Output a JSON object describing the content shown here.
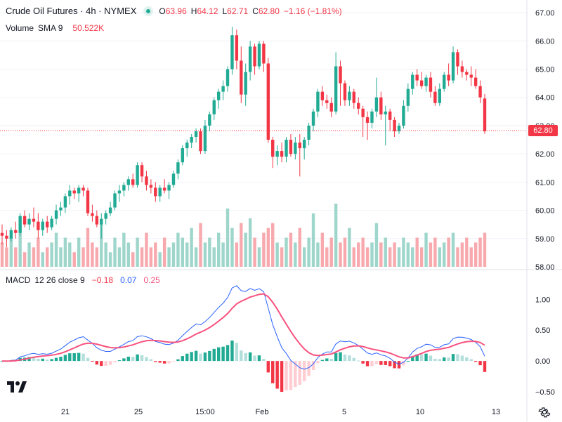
{
  "header": {
    "title": "Crude Oil Futures · 4h · NYMEX",
    "open_label": "O",
    "open": "63.96",
    "high_label": "H",
    "high": "64.12",
    "low_label": "L",
    "low": "62.71",
    "close_label": "C",
    "close": "62.80",
    "change": "−1.16 (−1.81%)"
  },
  "volume_legend": {
    "name": "Volume",
    "sma": "SMA 9",
    "value": "50.522K"
  },
  "macd_legend": {
    "name": "MACD",
    "params": "12 26 close 9",
    "hist": "−0.18",
    "macd": "0.07",
    "signal": "0.25"
  },
  "price_axis": [
    "67.00",
    "66.00",
    "65.00",
    "64.00",
    "63.00",
    "62.00",
    "61.00",
    "60.00",
    "59.00",
    "58.00"
  ],
  "macd_axis": [
    "1.00",
    "0.50",
    "0.00",
    "−0.50"
  ],
  "time_axis": [
    "21",
    "25",
    "15:00",
    "Feb",
    "5",
    "10",
    "13"
  ],
  "last_price_tag": "62.80",
  "colors": {
    "up": "#22ab94",
    "down": "#f23645",
    "up_vol": "#9fd6cb",
    "down_vol": "#f7a9ae",
    "macd_line": "#2962ff",
    "signal_line": "#f7527f",
    "hist_up": "#22ab94",
    "hist_up_fade": "#b2dfdb",
    "hist_down": "#f23645",
    "hist_down_fade": "#ffcdd2"
  },
  "chart_data": {
    "type": "candlestick",
    "price_range": [
      58,
      67.2
    ],
    "candles": [
      [
        59.2,
        59.5,
        58.8,
        59.1
      ],
      [
        59.1,
        59.3,
        58.7,
        59.0
      ],
      [
        59.0,
        59.4,
        58.9,
        59.3
      ],
      [
        59.3,
        59.6,
        59.0,
        59.2
      ],
      [
        59.2,
        59.9,
        59.1,
        59.8
      ],
      [
        59.8,
        60.0,
        59.4,
        59.5
      ],
      [
        59.5,
        59.9,
        59.3,
        59.7
      ],
      [
        59.7,
        60.1,
        59.4,
        59.6
      ],
      [
        59.6,
        59.9,
        59.0,
        59.3
      ],
      [
        59.3,
        59.7,
        59.1,
        59.6
      ],
      [
        59.6,
        59.8,
        59.2,
        59.4
      ],
      [
        59.4,
        59.8,
        59.3,
        59.7
      ],
      [
        59.7,
        60.2,
        59.5,
        60.0
      ],
      [
        60.0,
        60.3,
        59.8,
        60.1
      ],
      [
        60.1,
        60.6,
        59.9,
        60.5
      ],
      [
        60.5,
        60.9,
        60.2,
        60.7
      ],
      [
        60.7,
        60.8,
        60.4,
        60.6
      ],
      [
        60.6,
        60.9,
        60.3,
        60.8
      ],
      [
        60.8,
        60.9,
        60.5,
        60.7
      ],
      [
        60.7,
        60.8,
        59.8,
        59.9
      ],
      [
        59.9,
        60.2,
        59.6,
        59.8
      ],
      [
        59.8,
        60.0,
        59.4,
        59.5
      ],
      [
        59.5,
        59.9,
        59.0,
        59.7
      ],
      [
        59.7,
        60.0,
        59.5,
        59.9
      ],
      [
        59.9,
        60.3,
        59.8,
        60.1
      ],
      [
        60.1,
        60.7,
        60.0,
        60.6
      ],
      [
        60.6,
        60.9,
        60.3,
        60.7
      ],
      [
        60.7,
        61.0,
        60.5,
        60.9
      ],
      [
        60.9,
        61.2,
        60.7,
        61.1
      ],
      [
        61.1,
        61.3,
        60.8,
        60.9
      ],
      [
        60.9,
        61.7,
        60.8,
        61.6
      ],
      [
        61.6,
        61.7,
        61.0,
        61.2
      ],
      [
        61.2,
        61.4,
        60.7,
        60.9
      ],
      [
        60.9,
        61.1,
        60.6,
        60.8
      ],
      [
        60.8,
        61.0,
        60.3,
        60.5
      ],
      [
        60.5,
        60.9,
        60.3,
        60.8
      ],
      [
        60.8,
        61.1,
        60.6,
        60.7
      ],
      [
        60.7,
        61.0,
        60.4,
        60.9
      ],
      [
        60.9,
        61.4,
        60.8,
        61.3
      ],
      [
        61.3,
        61.8,
        61.1,
        61.7
      ],
      [
        61.7,
        62.3,
        61.6,
        62.2
      ],
      [
        62.2,
        62.5,
        61.9,
        62.4
      ],
      [
        62.4,
        62.7,
        62.2,
        62.6
      ],
      [
        62.6,
        62.9,
        62.4,
        62.8
      ],
      [
        62.8,
        62.9,
        62.0,
        62.1
      ],
      [
        62.1,
        63.2,
        62.0,
        63.0
      ],
      [
        63.0,
        63.5,
        62.8,
        63.4
      ],
      [
        63.4,
        64.0,
        63.2,
        63.9
      ],
      [
        63.9,
        64.3,
        63.6,
        64.2
      ],
      [
        64.2,
        64.6,
        63.9,
        64.4
      ],
      [
        64.4,
        65.1,
        64.2,
        65.0
      ],
      [
        65.0,
        66.5,
        64.8,
        66.2
      ],
      [
        66.2,
        66.4,
        65.0,
        65.3
      ],
      [
        65.3,
        65.8,
        63.8,
        64.1
      ],
      [
        64.1,
        65.2,
        63.7,
        64.9
      ],
      [
        64.9,
        66.0,
        64.6,
        65.8
      ],
      [
        65.8,
        65.9,
        64.8,
        65.1
      ],
      [
        65.1,
        66.0,
        65.0,
        65.9
      ],
      [
        65.9,
        66.0,
        64.9,
        65.2
      ],
      [
        65.2,
        65.4,
        62.4,
        62.5
      ],
      [
        62.5,
        62.6,
        61.5,
        61.9
      ],
      [
        61.9,
        62.3,
        61.6,
        62.1
      ],
      [
        62.1,
        62.4,
        61.7,
        61.9
      ],
      [
        61.9,
        62.6,
        61.7,
        62.5
      ],
      [
        62.5,
        62.7,
        61.9,
        62.0
      ],
      [
        62.0,
        62.6,
        61.8,
        62.4
      ],
      [
        62.4,
        62.7,
        61.2,
        62.2
      ],
      [
        62.2,
        62.6,
        61.8,
        62.5
      ],
      [
        62.5,
        63.1,
        62.3,
        63.0
      ],
      [
        63.0,
        63.6,
        62.8,
        63.5
      ],
      [
        63.5,
        64.3,
        63.3,
        64.2
      ],
      [
        64.2,
        64.4,
        63.7,
        63.9
      ],
      [
        63.9,
        64.1,
        63.6,
        63.8
      ],
      [
        63.8,
        64.0,
        63.3,
        63.5
      ],
      [
        63.5,
        65.6,
        63.4,
        65.1
      ],
      [
        65.1,
        65.3,
        63.7,
        64.5
      ],
      [
        64.5,
        64.6,
        63.7,
        63.9
      ],
      [
        63.9,
        64.4,
        63.7,
        64.2
      ],
      [
        64.2,
        64.3,
        63.6,
        63.8
      ],
      [
        63.8,
        64.0,
        63.4,
        63.6
      ],
      [
        63.6,
        63.7,
        62.6,
        63.3
      ],
      [
        63.3,
        63.5,
        62.5,
        63.1
      ],
      [
        63.1,
        63.6,
        62.9,
        63.5
      ],
      [
        63.5,
        64.7,
        63.3,
        64.0
      ],
      [
        64.0,
        64.2,
        63.2,
        63.4
      ],
      [
        63.4,
        63.7,
        62.3,
        63.5
      ],
      [
        63.5,
        63.6,
        62.8,
        63.2
      ],
      [
        63.2,
        63.3,
        62.6,
        62.8
      ],
      [
        62.8,
        63.1,
        62.7,
        63.0
      ],
      [
        63.0,
        63.9,
        62.9,
        63.7
      ],
      [
        63.7,
        64.5,
        63.5,
        64.3
      ],
      [
        64.3,
        64.9,
        64.1,
        64.8
      ],
      [
        64.8,
        65.0,
        64.4,
        64.6
      ],
      [
        64.6,
        64.9,
        64.3,
        64.4
      ],
      [
        64.4,
        64.8,
        64.2,
        64.7
      ],
      [
        64.7,
        64.9,
        64.0,
        64.2
      ],
      [
        64.2,
        64.4,
        63.7,
        63.8
      ],
      [
        63.8,
        64.5,
        63.7,
        64.3
      ],
      [
        64.3,
        64.9,
        64.2,
        64.8
      ],
      [
        64.8,
        65.2,
        64.4,
        64.6
      ],
      [
        64.6,
        65.8,
        64.5,
        65.6
      ],
      [
        65.6,
        65.7,
        64.8,
        65.1
      ],
      [
        65.1,
        65.3,
        64.7,
        64.9
      ],
      [
        64.9,
        65.0,
        64.6,
        64.8
      ],
      [
        64.8,
        65.1,
        64.4,
        64.7
      ],
      [
        64.7,
        65.0,
        64.3,
        64.4
      ],
      [
        64.4,
        64.6,
        63.8,
        64.0
      ],
      [
        63.96,
        64.12,
        62.71,
        62.8
      ]
    ],
    "volume": [
      5,
      4,
      6,
      4,
      7,
      3,
      5,
      4,
      6,
      3,
      4,
      5,
      7,
      4,
      6,
      5,
      3,
      6,
      4,
      8,
      5,
      4,
      9,
      5,
      3,
      6,
      4,
      7,
      5,
      3,
      6,
      4,
      7,
      4,
      5,
      3,
      6,
      4,
      5,
      7,
      6,
      5,
      8,
      4,
      9,
      5,
      6,
      4,
      7,
      5,
      12,
      8,
      5,
      9,
      7,
      10,
      6,
      4,
      7,
      8,
      9,
      5,
      4,
      6,
      7,
      5,
      8,
      4,
      6,
      11,
      5,
      7,
      4,
      6,
      13,
      5,
      6,
      8,
      4,
      5,
      6,
      4,
      5,
      9,
      5,
      6,
      4,
      5,
      4,
      6,
      5,
      4,
      6,
      4,
      7,
      5,
      6,
      4,
      5,
      6,
      7,
      4,
      5,
      6,
      4,
      5,
      6,
      7
    ]
  }
}
